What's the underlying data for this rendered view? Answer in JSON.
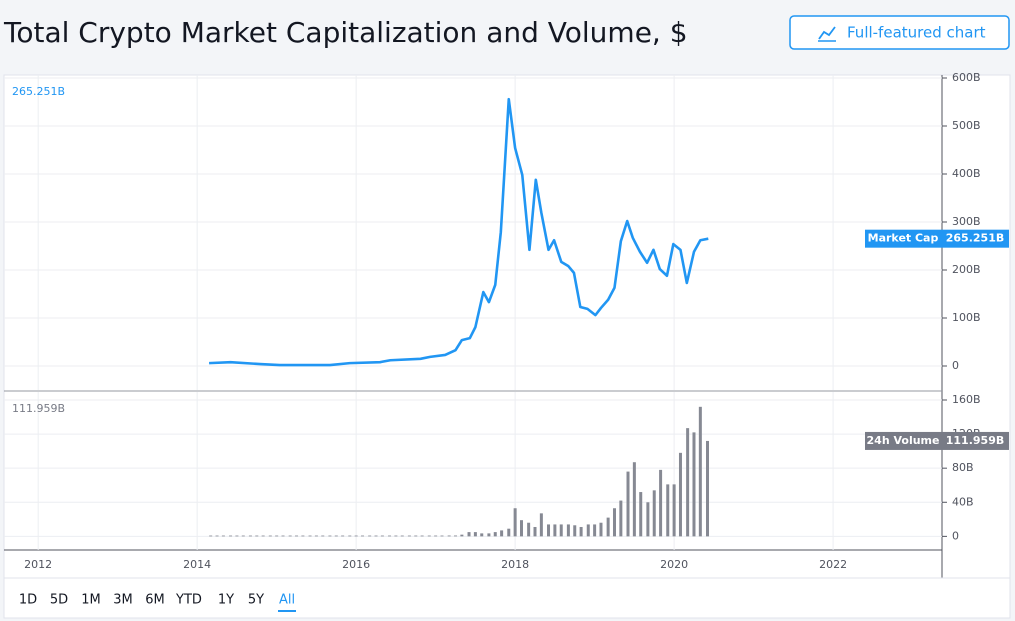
{
  "header": {
    "title": "Total Crypto Market Capitalization and Volume, $",
    "button": "Full-featured chart"
  },
  "chart_data": [
    {
      "type": "line",
      "series": [
        {
          "name": "Market Cap",
          "color": "#2196f3",
          "x": [
            2014.15,
            2014.42,
            2014.79,
            2015.04,
            2015.67,
            2015.92,
            2016.3,
            2016.43,
            2016.81,
            2016.93,
            2017.12,
            2017.25,
            2017.33,
            2017.43,
            2017.5,
            2017.6,
            2017.67,
            2017.75,
            2017.82,
            2017.92,
            2018.0,
            2018.09,
            2018.18,
            2018.26,
            2018.33,
            2018.42,
            2018.49,
            2018.58,
            2018.67,
            2018.74,
            2018.82,
            2018.91,
            2019.01,
            2019.08,
            2019.17,
            2019.25,
            2019.33,
            2019.41,
            2019.48,
            2019.57,
            2019.66,
            2019.74,
            2019.82,
            2019.91,
            2019.99,
            2020.08,
            2020.16,
            2020.25,
            2020.33,
            2020.43
          ],
          "values": [
            6,
            8,
            4,
            2,
            2,
            6,
            8,
            12,
            15,
            19,
            23,
            33,
            54,
            58,
            81,
            154,
            133,
            169,
            279,
            556,
            454,
            398,
            242,
            388,
            319,
            242,
            262,
            217,
            208,
            194,
            123,
            119,
            106,
            121,
            138,
            163,
            260,
            302,
            267,
            238,
            215,
            242,
            202,
            188,
            254,
            242,
            173,
            238,
            262,
            265.251
          ]
        }
      ],
      "last_label": "265.251B",
      "xlim": [
        2011.57,
        2023.37
      ],
      "xticks": [
        2012,
        2014,
        2016,
        2018,
        2020,
        2022
      ],
      "ylim": [
        -50,
        600
      ],
      "yticks": [
        0,
        {
          "value": 100,
          "label": "100B"
        },
        {
          "value": 200,
          "label": "200B"
        },
        {
          "value": 300,
          "label": "300B"
        },
        {
          "value": 400,
          "label": "400B"
        },
        {
          "value": 500,
          "label": "500B"
        },
        {
          "value": 600,
          "label": "600B"
        }
      ],
      "grid": true
    },
    {
      "type": "bar",
      "series": [
        {
          "name": "24h Volume",
          "color": "#868993",
          "x": [
            2014.17,
            2014.25,
            2014.33,
            2014.42,
            2014.5,
            2014.58,
            2014.67,
            2014.75,
            2014.83,
            2014.92,
            2015,
            2015.08,
            2015.17,
            2015.25,
            2015.33,
            2015.42,
            2015.5,
            2015.58,
            2015.67,
            2015.75,
            2015.83,
            2015.92,
            2016,
            2016.08,
            2016.17,
            2016.25,
            2016.33,
            2016.42,
            2016.5,
            2016.58,
            2016.67,
            2016.75,
            2016.83,
            2016.92,
            2017,
            2017.08,
            2017.17,
            2017.25,
            2017.33,
            2017.42,
            2017.5,
            2017.58,
            2017.67,
            2017.75,
            2017.83,
            2017.92,
            2018,
            2018.08,
            2018.17,
            2018.25,
            2018.33,
            2018.42,
            2018.5,
            2018.58,
            2018.67,
            2018.75,
            2018.83,
            2018.92,
            2019,
            2019.08,
            2019.17,
            2019.25,
            2019.33,
            2019.42,
            2019.5,
            2019.58,
            2019.67,
            2019.75,
            2019.83,
            2019.92,
            2020,
            2020.08,
            2020.17,
            2020.25,
            2020.33,
            2020.42
          ],
          "values": [
            0.2,
            0.2,
            0.2,
            0.2,
            0.2,
            0.2,
            0.2,
            0.2,
            0.2,
            0.2,
            0.2,
            0.2,
            0.2,
            0.2,
            0.2,
            0.2,
            0.2,
            0.2,
            0.2,
            0.2,
            0.2,
            0.2,
            0.3,
            0.3,
            0.3,
            0.3,
            0.3,
            0.3,
            0.3,
            0.3,
            0.3,
            0.3,
            0.3,
            0.3,
            0.5,
            0.8,
            1,
            1,
            2,
            5,
            5,
            3.5,
            3.5,
            5,
            7,
            9,
            33,
            19,
            16,
            11,
            27,
            14,
            14,
            14,
            14,
            13,
            11,
            14,
            14,
            16,
            22,
            33,
            42,
            76,
            87,
            52,
            40,
            54,
            78,
            61,
            61,
            98,
            127,
            122,
            152,
            111.959
          ]
        }
      ],
      "last_label": "111.959B",
      "xlim": [
        2011.57,
        2023.37
      ],
      "xticks": [
        2012,
        2014,
        2016,
        2018,
        2020,
        2022
      ],
      "ylim": [
        -16,
        160
      ],
      "yticks": [
        0,
        {
          "value": 40,
          "label": "40B"
        },
        {
          "value": 80,
          "label": "80B"
        },
        {
          "value": 120,
          "label": "120B"
        },
        {
          "value": 160,
          "label": "160B"
        }
      ],
      "grid": true
    }
  ],
  "range_buttons": {
    "labels": [
      "1D",
      "5D",
      "1M",
      "3M",
      "6M",
      "YTD",
      "1Y",
      "5Y",
      "All"
    ],
    "selected_index": 8
  }
}
